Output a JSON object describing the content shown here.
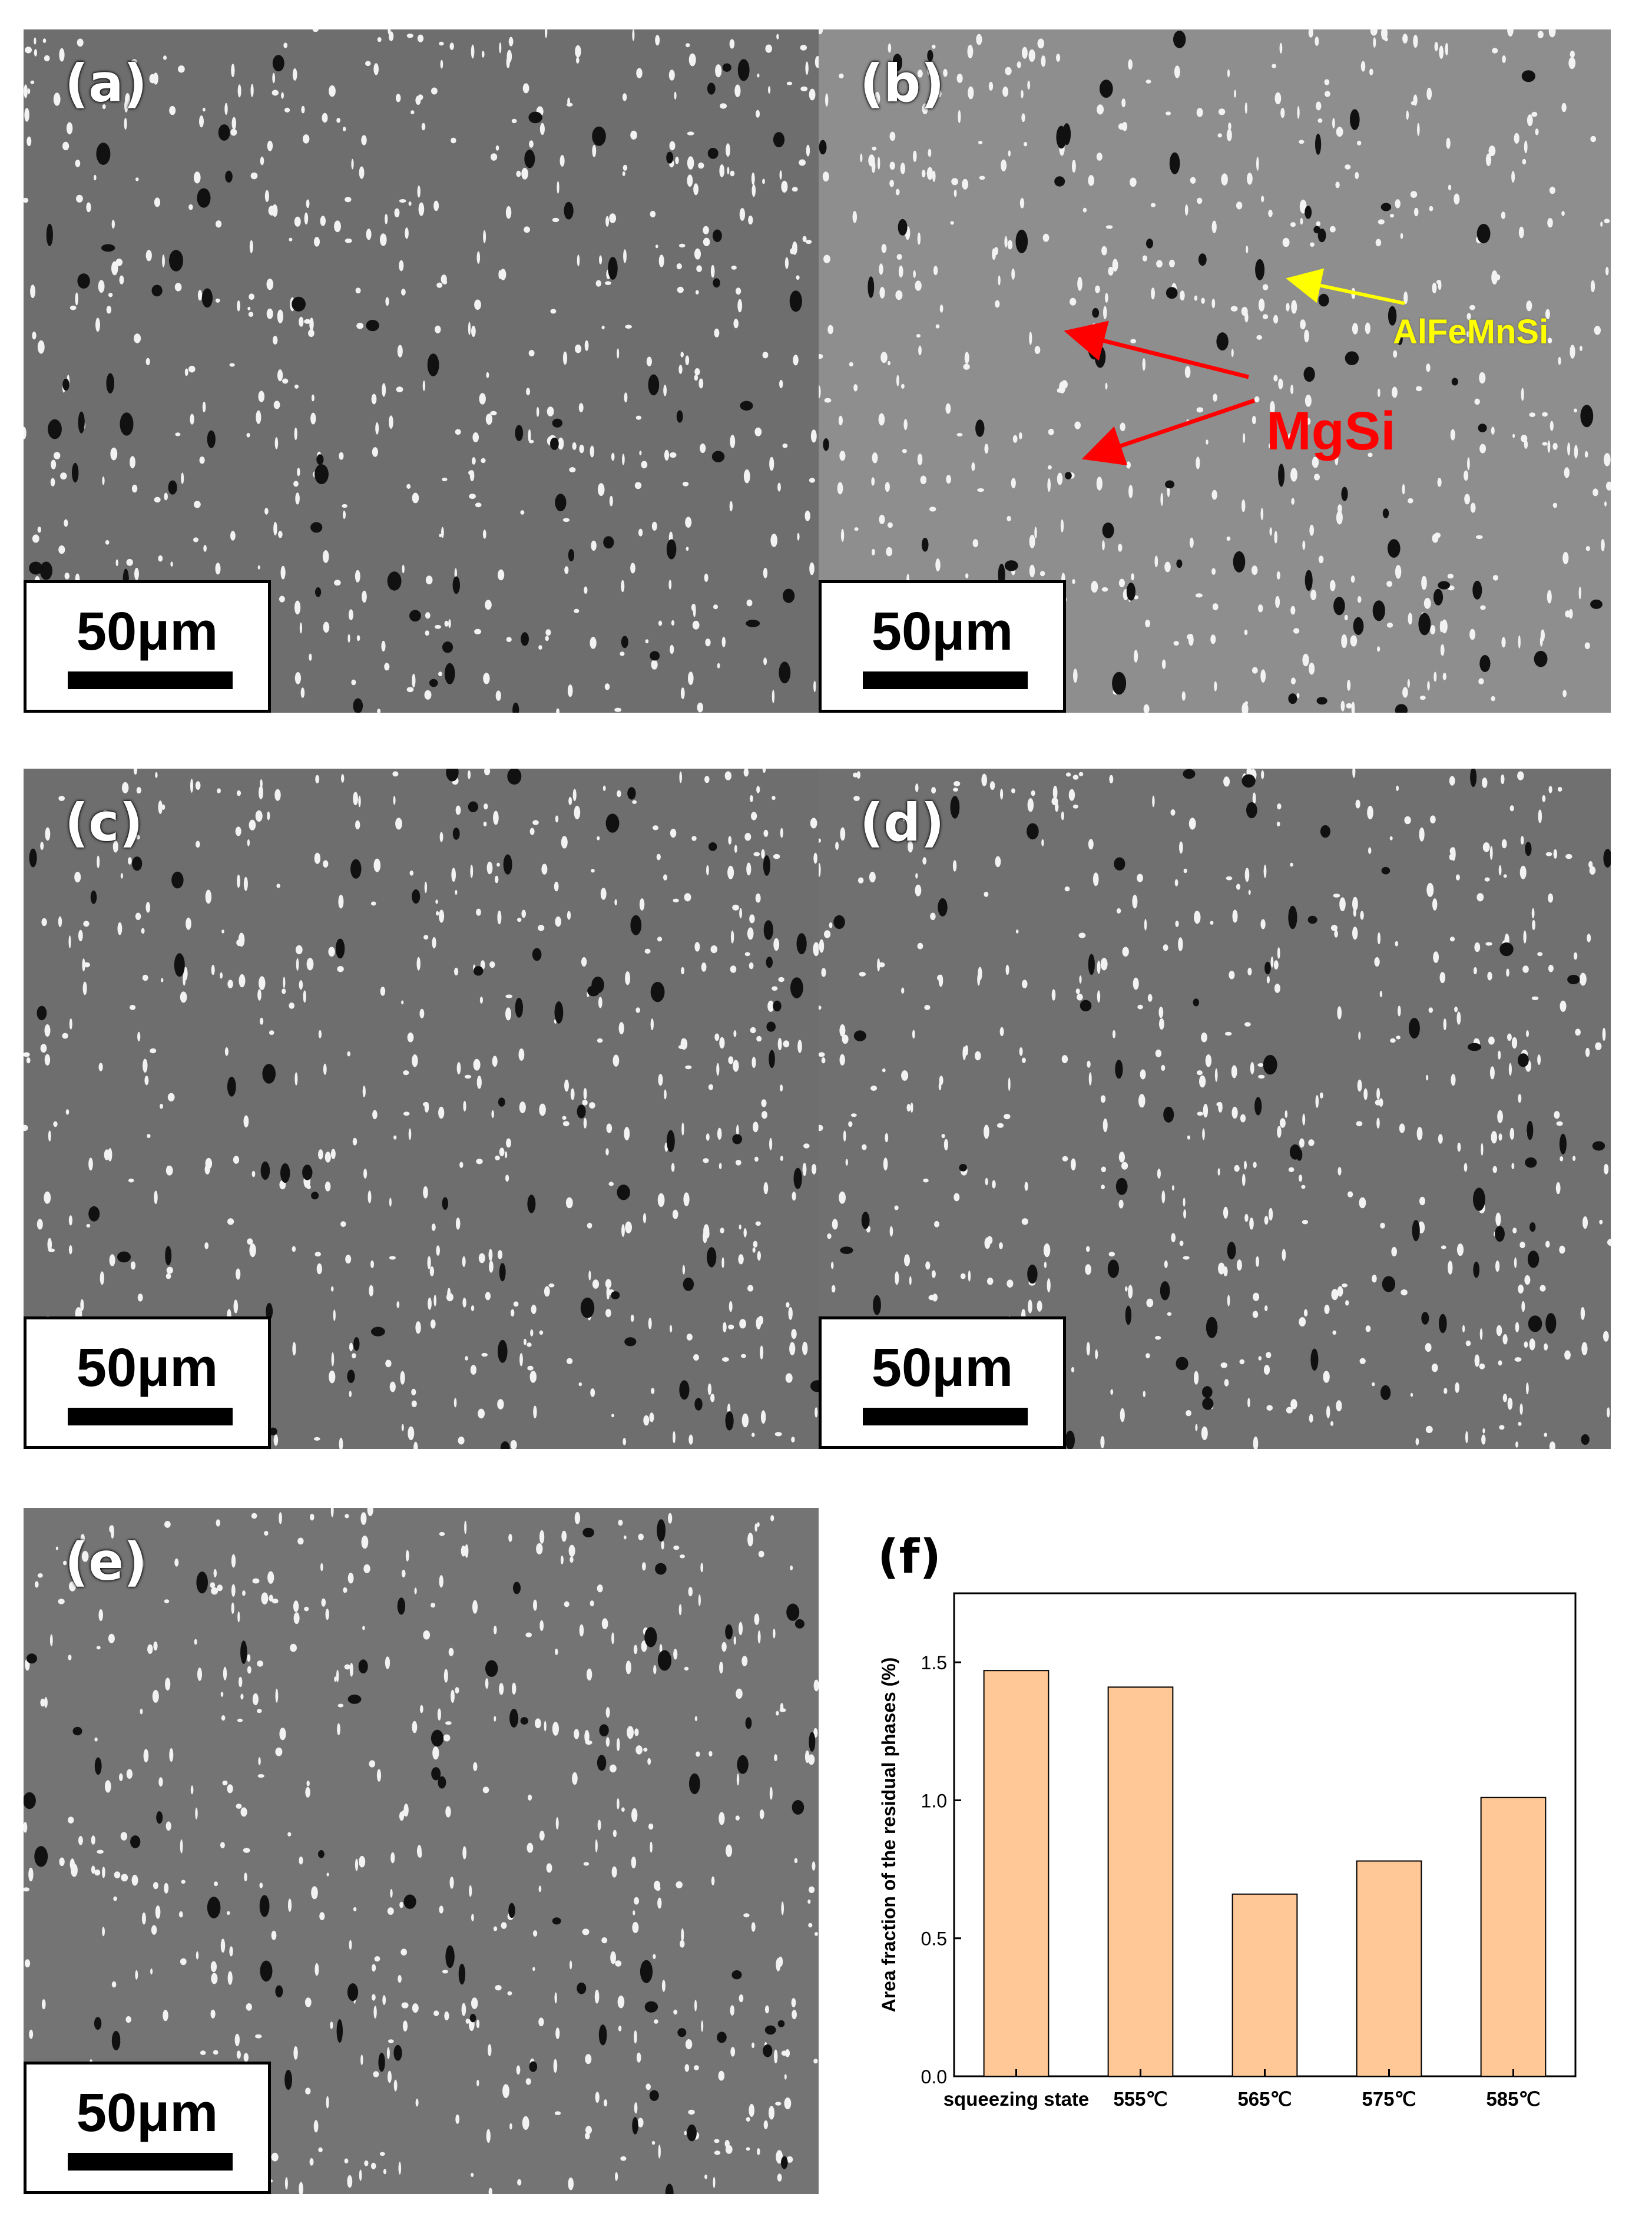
{
  "panels": [
    {
      "id": "a",
      "label": "(a)",
      "scale": "50μm"
    },
    {
      "id": "b",
      "label": "(b)",
      "scale": "50μm"
    },
    {
      "id": "c",
      "label": "(c)",
      "scale": "50μm"
    },
    {
      "id": "d",
      "label": "(d)",
      "scale": "50μm"
    },
    {
      "id": "e",
      "label": "(e)",
      "scale": "50μm"
    }
  ],
  "annotations": {
    "mgsi": "MgSi",
    "alfemnsi": "AlFeMnSi",
    "mgsi_color": "#ff0000",
    "alfemnsi_color": "#ffff00"
  },
  "chart_label": "(f)",
  "chart_data": {
    "type": "bar",
    "categories": [
      "squeezing state",
      "555℃",
      "565℃",
      "575℃",
      "585℃"
    ],
    "values": [
      1.47,
      1.41,
      0.66,
      0.78,
      1.01
    ],
    "ylabel": "Area fraction of the residual phases (%)",
    "xlabel": "",
    "ylim": [
      0,
      1.75
    ],
    "yticks": [
      "0.0",
      "0.5",
      "1.0",
      "1.5"
    ],
    "bar_color": "#ffc896",
    "grid": false
  }
}
